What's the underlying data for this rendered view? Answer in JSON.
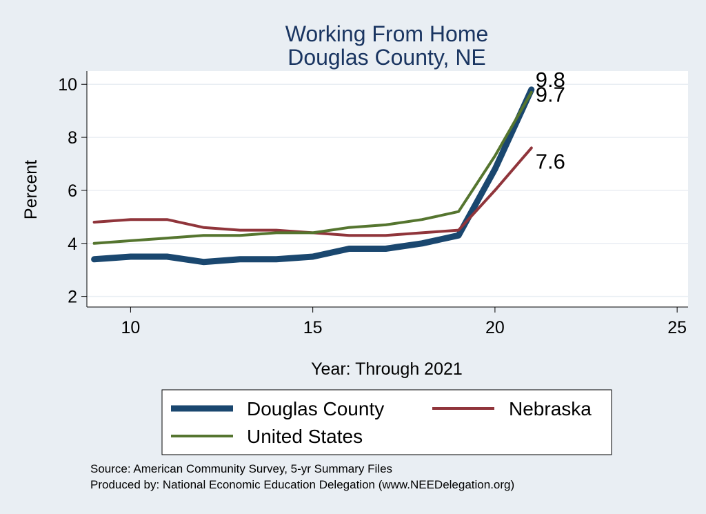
{
  "chart_data": {
    "type": "line",
    "title": "Working From Home",
    "subtitle": "Douglas County, NE",
    "xlabel": "Year: Through 2021",
    "ylabel": "Percent",
    "xlim": [
      8.8,
      25.3
    ],
    "ylim": [
      1.6,
      10.5
    ],
    "xticks": [
      10,
      15,
      20,
      25
    ],
    "yticks": [
      2,
      4,
      6,
      8,
      10
    ],
    "grid": true,
    "x": [
      9,
      10,
      11,
      12,
      13,
      14,
      15,
      16,
      17,
      18,
      19,
      20,
      21
    ],
    "series": [
      {
        "name": "Douglas County",
        "color": "#1a476f",
        "values": [
          3.4,
          3.5,
          3.5,
          3.3,
          3.4,
          3.4,
          3.5,
          3.8,
          3.8,
          4.0,
          4.3,
          6.8,
          9.8
        ],
        "end_label": "9.8"
      },
      {
        "name": "Nebraska",
        "color": "#90353b",
        "values": [
          4.8,
          4.9,
          4.9,
          4.6,
          4.5,
          4.5,
          4.4,
          4.3,
          4.3,
          4.4,
          4.5,
          6.0,
          7.6
        ],
        "end_label": "7.6"
      },
      {
        "name": "United States",
        "color": "#55752f",
        "values": [
          4.0,
          4.1,
          4.2,
          4.3,
          4.3,
          4.4,
          4.4,
          4.6,
          4.7,
          4.9,
          5.2,
          7.3,
          9.7
        ],
        "end_label": "9.7"
      }
    ],
    "legend_position": "bottom",
    "notes": [
      "Source: American Community Survey, 5-yr Summary Files",
      "Produced by: National Economic Education Delegation (www.NEEDelegation.org)"
    ]
  }
}
